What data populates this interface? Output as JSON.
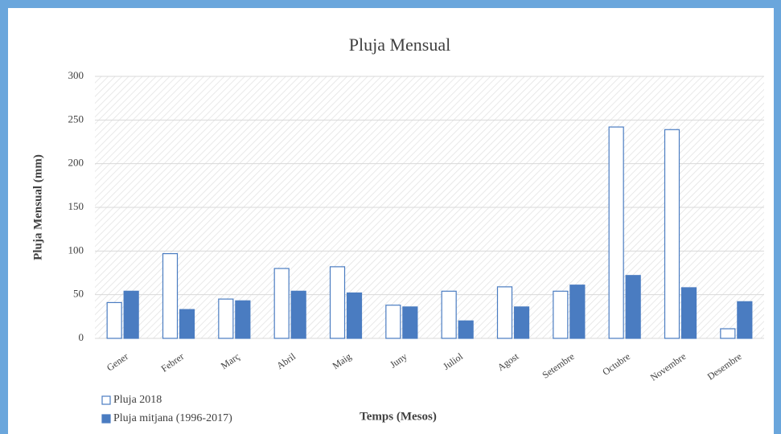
{
  "chart_data": {
    "type": "bar",
    "title": "Pluja Mensual",
    "x_label": "Temps (Mesos)",
    "y_label": "Pluja Mensual (mm)",
    "categories": [
      "Gener",
      "Febrer",
      "Març",
      "Abril",
      "Maig",
      "Juny",
      "Juliol",
      "Agost",
      "Setembre",
      "Octubre",
      "Novembre",
      "Desembre"
    ],
    "series": [
      {
        "name": "Pluja 2018",
        "color": "#4a7cc1",
        "fill": "#ffffff",
        "values": [
          41,
          97,
          45,
          80,
          82,
          38,
          54,
          59,
          54,
          242,
          239,
          11
        ]
      },
      {
        "name": "Pluja mitjana (1996-2017)",
        "color": "#4a7cc1",
        "fill": "#4a7cc1",
        "values": [
          54,
          33,
          43,
          54,
          52,
          36,
          20,
          36,
          61,
          72,
          58,
          42
        ]
      }
    ],
    "ylim": [
      0,
      300
    ],
    "yticks": [
      0,
      50,
      100,
      150,
      200,
      250,
      300
    ],
    "grid": true,
    "legend": "bottom-left"
  }
}
